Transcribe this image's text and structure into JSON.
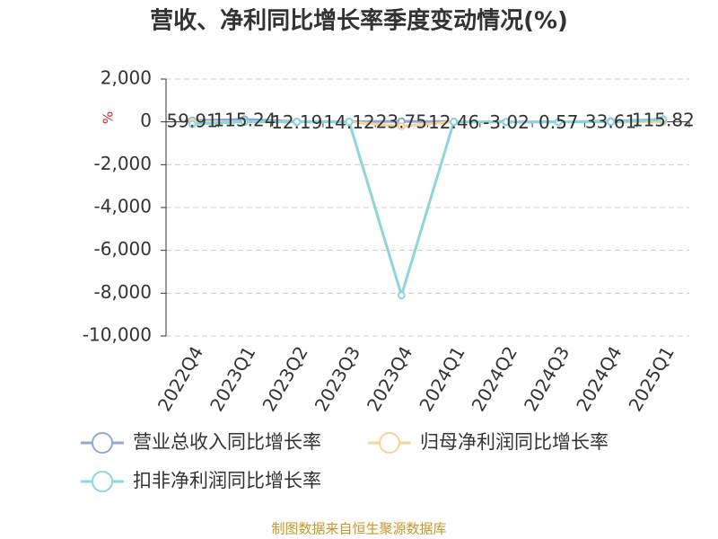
{
  "chart_data": {
    "type": "line",
    "title": "营收、净利同比增长率季度变动情况(%)",
    "y_label": "%",
    "source": "制图数据来自恒生聚源数据库",
    "categories": [
      "2022Q4",
      "2023Q1",
      "2023Q2",
      "2023Q3",
      "2023Q4",
      "2024Q1",
      "2024Q2",
      "2024Q3",
      "2024Q4",
      "2025Q1"
    ],
    "series": [
      {
        "name": "营业总收入同比增长率",
        "color": "#8fa8d8",
        "values": [
          59.91,
          115.24,
          12.19,
          14.12,
          23.75,
          12.46,
          -3.02,
          0.57,
          33.61,
          115.82
        ]
      },
      {
        "name": "归母净利润同比增长率",
        "color": "#f7d39a",
        "values": [
          0,
          0,
          0,
          0,
          -200,
          0,
          0,
          0,
          0,
          0
        ]
      },
      {
        "name": "扣非净利润同比增长率",
        "color": "#8dd5dc",
        "values": [
          -100,
          0,
          0,
          0,
          -8100,
          0,
          0,
          0,
          0,
          100
        ]
      }
    ],
    "ylim": [
      -10000,
      2000
    ],
    "yticks": [
      {
        "value": 2000,
        "label": "2,000"
      },
      0,
      {
        "value": -2000,
        "label": "-2,000"
      },
      {
        "value": -4000,
        "label": "-4,000"
      },
      {
        "value": -6000,
        "label": "-6,000"
      },
      {
        "value": -8000,
        "label": "-8,000"
      },
      {
        "value": -10000,
        "label": "-10,000"
      }
    ],
    "grid": true
  }
}
